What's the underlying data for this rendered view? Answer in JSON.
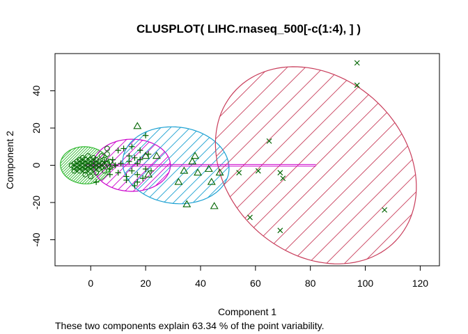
{
  "chart_data": {
    "type": "scatter",
    "title": "CLUSPLOT( LIHC.rnaseq_500[-c(1:4), ] )",
    "xlabel": "Component 1",
    "ylabel": "Component 2",
    "footnote": "These two components explain 63.34 % of the point variability.",
    "xlim": [
      -13,
      127
    ],
    "ylim": [
      -54,
      60
    ],
    "xticks": [
      0,
      20,
      40,
      60,
      80,
      100,
      120
    ],
    "yticks": [
      -40,
      -20,
      0,
      20,
      40
    ],
    "xtick_labels": [
      "0",
      "20",
      "40",
      "60",
      "80",
      "100",
      "120"
    ],
    "ytick_labels": [
      "-40",
      "-20",
      "0",
      "20",
      "40"
    ],
    "grid": false,
    "point_color": "#006400",
    "clusters": [
      {
        "id": 1,
        "marker": "circle",
        "color": "#2eb82e",
        "ellipse": {
          "cx": -2,
          "cy": 0,
          "rx": 9,
          "ry": 10,
          "angle_deg": 10
        },
        "points": [
          [
            -7,
            0
          ],
          [
            -6,
            1
          ],
          [
            -6,
            -1
          ],
          [
            -5,
            0
          ],
          [
            -5,
            2
          ],
          [
            -5,
            -2
          ],
          [
            -4,
            1
          ],
          [
            -4,
            -1
          ],
          [
            -4,
            3
          ],
          [
            -4,
            -3
          ],
          [
            -3,
            0
          ],
          [
            -3,
            2
          ],
          [
            -3,
            -2
          ],
          [
            -3,
            4
          ],
          [
            -2,
            1
          ],
          [
            -2,
            -1
          ],
          [
            -2,
            3
          ],
          [
            -2,
            -3
          ],
          [
            -1,
            0
          ],
          [
            -1,
            2
          ],
          [
            -1,
            -2
          ],
          [
            -1,
            5
          ],
          [
            0,
            1
          ],
          [
            0,
            -1
          ],
          [
            0,
            3
          ],
          [
            0,
            -3
          ],
          [
            1,
            0
          ],
          [
            1,
            2
          ],
          [
            1,
            -2
          ],
          [
            1,
            4
          ],
          [
            2,
            1
          ],
          [
            2,
            -1
          ],
          [
            2,
            3
          ],
          [
            3,
            0
          ],
          [
            3,
            2
          ],
          [
            3,
            -2
          ],
          [
            4,
            1
          ],
          [
            4,
            -1
          ],
          [
            4,
            5
          ],
          [
            5,
            0
          ],
          [
            5,
            3
          ],
          [
            5,
            -3
          ],
          [
            6,
            1
          ],
          [
            6,
            6
          ],
          [
            7,
            -1
          ],
          [
            7,
            2
          ],
          [
            8,
            0
          ],
          [
            6,
            9
          ],
          [
            -6,
            -3
          ],
          [
            -2,
            -5
          ],
          [
            0,
            -6
          ],
          [
            2,
            -4
          ]
        ]
      },
      {
        "id": 2,
        "marker": "plus",
        "color": "#cc00cc",
        "ellipse": {
          "cx": 15,
          "cy": 0,
          "rx": 14,
          "ry": 14,
          "angle_deg": 5
        },
        "points": [
          [
            2,
            -9
          ],
          [
            5,
            2
          ],
          [
            7,
            -2
          ],
          [
            8,
            3
          ],
          [
            10,
            8
          ],
          [
            10,
            -4
          ],
          [
            11,
            1
          ],
          [
            12,
            9
          ],
          [
            13,
            -6
          ],
          [
            13,
            -8
          ],
          [
            14,
            2
          ],
          [
            14,
            5
          ],
          [
            15,
            -3
          ],
          [
            15,
            10
          ],
          [
            16,
            -11
          ],
          [
            16,
            4
          ],
          [
            17,
            -5
          ],
          [
            17,
            1
          ],
          [
            17,
            -9
          ],
          [
            18,
            8
          ],
          [
            18,
            3
          ],
          [
            19,
            -7
          ],
          [
            20,
            16
          ],
          [
            20,
            -2
          ],
          [
            21,
            6
          ],
          [
            22,
            -3
          ],
          [
            7,
            -5
          ],
          [
            9,
            0
          ]
        ]
      },
      {
        "id": 3,
        "marker": "triangle",
        "color": "#1aa0d2",
        "ellipse": {
          "cx": 31,
          "cy": 0,
          "rx": 19,
          "ry": 21,
          "angle_deg": 25
        },
        "points": [
          [
            17,
            21
          ],
          [
            20,
            5
          ],
          [
            21,
            -5
          ],
          [
            24,
            5
          ],
          [
            32,
            -9
          ],
          [
            34,
            -3
          ],
          [
            35,
            -21
          ],
          [
            37,
            2
          ],
          [
            38,
            5
          ],
          [
            39,
            -4
          ],
          [
            43,
            -2
          ],
          [
            44,
            -9
          ],
          [
            47,
            -4
          ],
          [
            45,
            -22
          ]
        ]
      },
      {
        "id": 4,
        "marker": "cross",
        "color": "#c83c5a",
        "ellipse": {
          "cx": 82,
          "cy": 0,
          "rx": 35,
          "ry": 54,
          "angle_deg": 15
        },
        "points": [
          [
            54,
            -4
          ],
          [
            58,
            -28
          ],
          [
            61,
            -3
          ],
          [
            65,
            13
          ],
          [
            69,
            -35
          ],
          [
            69,
            -4
          ],
          [
            70,
            -7
          ],
          [
            97,
            55
          ],
          [
            97,
            43
          ],
          [
            107,
            -24
          ]
        ]
      }
    ],
    "connectors": [
      [
        1,
        2
      ],
      [
        2,
        3
      ],
      [
        3,
        4
      ]
    ]
  }
}
